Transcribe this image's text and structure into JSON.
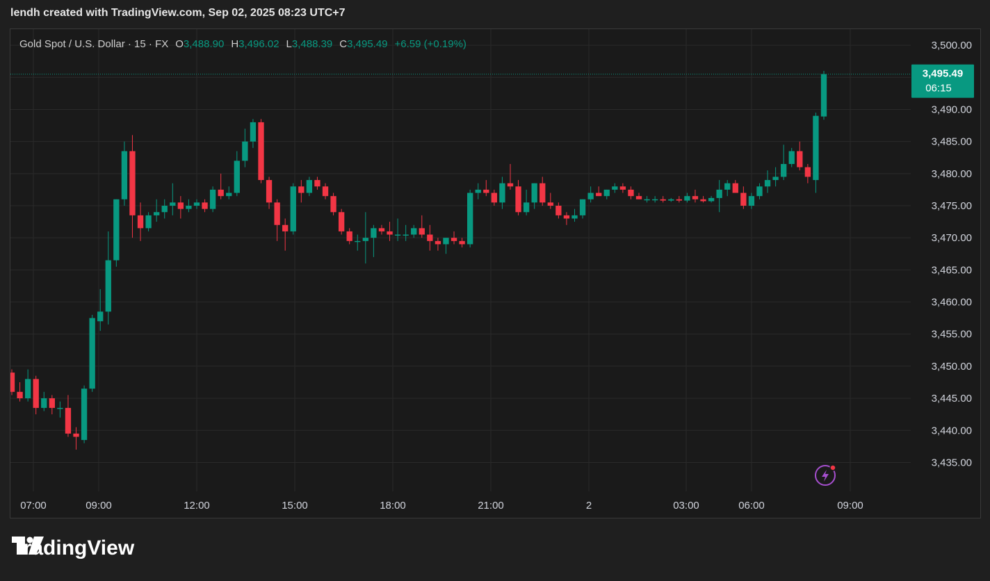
{
  "credit": "lendh created with TradingView.com, Sep 02, 2025 08:23 UTC+7",
  "legend": {
    "symbol": "Gold Spot / U.S. Dollar · 15 · FX",
    "o_label": "O",
    "o_value": "3,488.90",
    "h_label": "H",
    "h_value": "3,496.02",
    "l_label": "L",
    "l_value": "3,488.39",
    "c_label": "C",
    "c_value": "3,495.49",
    "change": "+6.59 (+0.19%)"
  },
  "price_badge": {
    "price": "3,495.49",
    "countdown": "06:15"
  },
  "brand": "TradingView",
  "colors": {
    "up": "#089981",
    "down": "#f23645",
    "grid": "#2a2a2a",
    "text": "#d1d4dc",
    "badge": "#089981"
  },
  "chart_data": {
    "type": "candlestick",
    "title": "Gold Spot / U.S. Dollar · 15 · FX",
    "y_ticks": [
      "3,500.00",
      "3,495.00",
      "3,490.00",
      "3,485.00",
      "3,480.00",
      "3,475.00",
      "3,470.00",
      "3,465.00",
      "3,460.00",
      "3,455.00",
      "3,450.00",
      "3,445.00",
      "3,440.00",
      "3,435.00"
    ],
    "y_tick_values": [
      3500,
      3495,
      3490,
      3485,
      3480,
      3475,
      3470,
      3465,
      3460,
      3455,
      3450,
      3445,
      3440,
      3435
    ],
    "x_ticks": [
      "07:00",
      "09:00",
      "12:00",
      "15:00",
      "18:00",
      "21:00",
      "2",
      "03:00",
      "06:00",
      "09:00"
    ],
    "ylim": [
      3430.5,
      3502.5
    ],
    "last_price": 3495.49,
    "candles": [
      [
        3449.0,
        3449.5,
        3445.5,
        3446.0
      ],
      [
        3446.0,
        3447.5,
        3444.5,
        3445.0
      ],
      [
        3445.0,
        3449.5,
        3444.5,
        3448.0
      ],
      [
        3448.0,
        3448.5,
        3442.5,
        3443.5
      ],
      [
        3443.5,
        3446.0,
        3443.0,
        3445.0
      ],
      [
        3445.0,
        3445.5,
        3442.5,
        3443.5
      ],
      [
        3443.5,
        3444.5,
        3442.0,
        3443.5
      ],
      [
        3443.5,
        3445.5,
        3439.0,
        3439.5
      ],
      [
        3439.5,
        3440.5,
        3437.0,
        3439.0
      ],
      [
        3438.5,
        3447.0,
        3438.0,
        3446.5
      ],
      [
        3446.5,
        3458.0,
        3446.0,
        3457.5
      ],
      [
        3457.0,
        3462.0,
        3455.5,
        3458.5
      ],
      [
        3458.5,
        3471.0,
        3456.5,
        3466.5
      ],
      [
        3466.5,
        3476.0,
        3465.5,
        3476.0
      ],
      [
        3476.0,
        3485.0,
        3475.0,
        3483.5
      ],
      [
        3483.5,
        3486.0,
        3470.0,
        3473.5
      ],
      [
        3473.5,
        3475.5,
        3469.5,
        3471.5
      ],
      [
        3471.5,
        3474.0,
        3471.0,
        3473.5
      ],
      [
        3473.5,
        3476.0,
        3472.5,
        3474.0
      ],
      [
        3474.0,
        3476.0,
        3473.0,
        3475.0
      ],
      [
        3475.0,
        3478.5,
        3473.5,
        3475.5
      ],
      [
        3475.5,
        3476.5,
        3473.0,
        3474.5
      ],
      [
        3474.5,
        3476.0,
        3474.0,
        3475.0
      ],
      [
        3475.0,
        3476.0,
        3474.5,
        3475.5
      ],
      [
        3475.5,
        3476.0,
        3474.0,
        3474.5
      ],
      [
        3474.5,
        3478.0,
        3474.0,
        3477.5
      ],
      [
        3477.5,
        3480.0,
        3476.0,
        3476.5
      ],
      [
        3476.5,
        3478.0,
        3476.0,
        3477.0
      ],
      [
        3477.0,
        3483.5,
        3476.5,
        3482.0
      ],
      [
        3482.0,
        3487.0,
        3481.0,
        3485.0
      ],
      [
        3485.0,
        3488.5,
        3484.0,
        3488.0
      ],
      [
        3488.0,
        3488.5,
        3478.5,
        3479.0
      ],
      [
        3479.0,
        3479.5,
        3474.5,
        3475.5
      ],
      [
        3475.5,
        3476.0,
        3469.5,
        3472.0
      ],
      [
        3472.0,
        3473.0,
        3468.0,
        3471.0
      ],
      [
        3471.0,
        3478.5,
        3470.5,
        3478.0
      ],
      [
        3478.0,
        3479.0,
        3475.5,
        3477.0
      ],
      [
        3477.0,
        3479.5,
        3476.5,
        3479.0
      ],
      [
        3479.0,
        3479.5,
        3477.5,
        3478.0
      ],
      [
        3478.0,
        3478.5,
        3476.0,
        3476.5
      ],
      [
        3476.5,
        3477.0,
        3473.5,
        3474.0
      ],
      [
        3474.0,
        3474.5,
        3470.5,
        3471.0
      ],
      [
        3471.0,
        3471.5,
        3469.0,
        3469.5
      ],
      [
        3469.5,
        3470.5,
        3468.0,
        3469.5
      ],
      [
        3469.5,
        3474.0,
        3466.0,
        3470.0
      ],
      [
        3470.0,
        3472.0,
        3467.0,
        3471.5
      ],
      [
        3471.5,
        3472.0,
        3470.5,
        3471.0
      ],
      [
        3471.0,
        3472.5,
        3469.5,
        3470.5
      ],
      [
        3470.5,
        3473.0,
        3469.5,
        3470.5
      ],
      [
        3470.5,
        3472.0,
        3469.5,
        3470.5
      ],
      [
        3470.5,
        3472.0,
        3470.0,
        3471.5
      ],
      [
        3471.5,
        3473.5,
        3470.0,
        3470.5
      ],
      [
        3470.5,
        3472.0,
        3468.0,
        3469.5
      ],
      [
        3469.5,
        3470.0,
        3468.0,
        3469.0
      ],
      [
        3469.0,
        3470.0,
        3467.5,
        3470.0
      ],
      [
        3470.0,
        3471.0,
        3469.0,
        3469.5
      ],
      [
        3469.5,
        3470.0,
        3468.5,
        3469.0
      ],
      [
        3469.0,
        3477.5,
        3468.5,
        3477.0
      ],
      [
        3477.0,
        3478.5,
        3476.0,
        3477.5
      ],
      [
        3477.5,
        3479.0,
        3476.5,
        3477.0
      ],
      [
        3477.0,
        3477.5,
        3475.0,
        3475.5
      ],
      [
        3475.5,
        3479.5,
        3474.5,
        3478.5
      ],
      [
        3478.5,
        3481.5,
        3477.5,
        3478.0
      ],
      [
        3478.0,
        3479.0,
        3473.5,
        3474.0
      ],
      [
        3474.0,
        3477.5,
        3473.5,
        3475.5
      ],
      [
        3475.5,
        3478.5,
        3474.5,
        3478.5
      ],
      [
        3478.5,
        3479.5,
        3475.0,
        3475.5
      ],
      [
        3475.5,
        3477.0,
        3474.5,
        3475.0
      ],
      [
        3475.0,
        3475.5,
        3473.0,
        3473.5
      ],
      [
        3473.5,
        3474.0,
        3472.0,
        3473.0
      ],
      [
        3473.0,
        3474.5,
        3472.5,
        3473.5
      ],
      [
        3473.5,
        3476.0,
        3473.0,
        3476.0
      ],
      [
        3476.0,
        3478.0,
        3475.5,
        3477.0
      ],
      [
        3477.0,
        3478.0,
        3476.5,
        3476.5
      ],
      [
        3476.5,
        3477.5,
        3476.0,
        3477.5
      ],
      [
        3477.5,
        3478.5,
        3477.0,
        3478.0
      ],
      [
        3478.0,
        3478.5,
        3477.0,
        3477.5
      ],
      [
        3477.5,
        3478.0,
        3476.0,
        3476.5
      ],
      [
        3476.5,
        3477.0,
        3476.0,
        3476.0
      ],
      [
        3476.0,
        3476.5,
        3475.5,
        3476.0
      ],
      [
        3476.0,
        3476.5,
        3475.5,
        3476.0
      ],
      [
        3476.0,
        3476.5,
        3475.5,
        3475.8
      ],
      [
        3475.8,
        3476.2,
        3475.6,
        3476.0
      ],
      [
        3476.0,
        3476.5,
        3475.5,
        3475.8
      ],
      [
        3475.8,
        3477.0,
        3475.5,
        3476.5
      ],
      [
        3476.5,
        3477.5,
        3475.5,
        3476.0
      ],
      [
        3476.0,
        3476.5,
        3475.5,
        3475.7
      ],
      [
        3475.7,
        3476.5,
        3475.5,
        3476.2
      ],
      [
        3476.2,
        3479.0,
        3474.0,
        3477.5
      ],
      [
        3477.5,
        3479.0,
        3476.5,
        3478.5
      ],
      [
        3478.5,
        3479.0,
        3477.0,
        3477.0
      ],
      [
        3477.0,
        3478.0,
        3474.5,
        3475.0
      ],
      [
        3475.0,
        3477.0,
        3474.5,
        3476.5
      ],
      [
        3476.5,
        3478.5,
        3476.0,
        3478.0
      ],
      [
        3478.0,
        3480.5,
        3477.0,
        3479.0
      ],
      [
        3479.0,
        3481.0,
        3478.0,
        3479.5
      ],
      [
        3479.5,
        3484.5,
        3479.0,
        3481.5
      ],
      [
        3481.5,
        3484.0,
        3481.0,
        3483.5
      ],
      [
        3483.5,
        3485.0,
        3480.5,
        3481.0
      ],
      [
        3481.0,
        3481.5,
        3478.5,
        3479.5
      ],
      [
        3479.0,
        3489.5,
        3477.0,
        3489.0
      ],
      [
        3488.9,
        3496.0,
        3488.4,
        3495.5
      ]
    ]
  }
}
